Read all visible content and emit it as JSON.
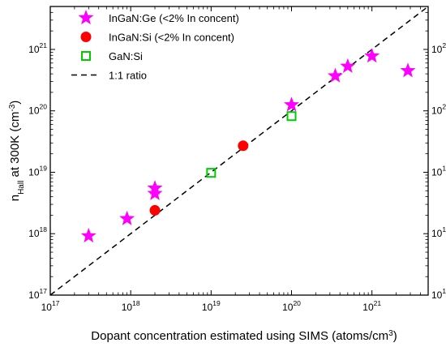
{
  "chart_data": {
    "type": "scatter",
    "xlabel": {
      "text": "Dopant concentration estimated using SIMS (atoms/cm",
      "sup": "3",
      "suffix": ")"
    },
    "ylabel": {
      "main": "n",
      "sub": "Hall",
      "mid": " at 300K (cm",
      "sup": "-3",
      "suffix": ")"
    },
    "x_scale": "log",
    "y_scale": "log",
    "xlim": [
      1e+17,
      5e+21
    ],
    "ylim": [
      1e+17,
      5e+21
    ],
    "x_ticks": [
      {
        "value": 1e+17,
        "base": "10",
        "exp": "17"
      },
      {
        "value": 1e+18,
        "base": "10",
        "exp": "18"
      },
      {
        "value": 1e+19,
        "base": "10",
        "exp": "19"
      },
      {
        "value": 1e+20,
        "base": "10",
        "exp": "20"
      },
      {
        "value": 1e+21,
        "base": "10",
        "exp": "21"
      }
    ],
    "y_ticks": [
      {
        "value": 1e+17,
        "base": "10",
        "exp": "17"
      },
      {
        "value": 1e+18,
        "base": "10",
        "exp": "18"
      },
      {
        "value": 1e+19,
        "base": "10",
        "exp": "19"
      },
      {
        "value": 1e+20,
        "base": "10",
        "exp": "20"
      },
      {
        "value": 1e+21,
        "base": "10",
        "exp": "21"
      }
    ],
    "grid": false,
    "legend_position": "top-left",
    "series": [
      {
        "name": "InGaN:Ge (<2% In concent)",
        "marker": "star",
        "color": "#ff00ff",
        "points": [
          {
            "x": 3e+17,
            "y": 9.2e+17
          },
          {
            "x": 9e+17,
            "y": 1.75e+18
          },
          {
            "x": 2e+18,
            "y": 4.5e+18
          },
          {
            "x": 2e+18,
            "y": 5.5e+18
          },
          {
            "x": 1e+20,
            "y": 1.25e+20
          },
          {
            "x": 3.5e+20,
            "y": 3.7e+20
          },
          {
            "x": 5e+20,
            "y": 5.3e+20
          },
          {
            "x": 1e+21,
            "y": 7.8e+20
          },
          {
            "x": 2.8e+21,
            "y": 4.5e+20
          }
        ]
      },
      {
        "name": "InGaN:Si  (<2% In concent)",
        "marker": "circle",
        "color": "#ff0000",
        "points": [
          {
            "x": 2e+18,
            "y": 2.4e+18
          },
          {
            "x": 2.5e+19,
            "y": 2.7e+19
          }
        ]
      },
      {
        "name": "GaN:Si",
        "marker": "open-square",
        "color": "#00cc00",
        "points": [
          {
            "x": 1e+19,
            "y": 9.8e+18
          },
          {
            "x": 1e+20,
            "y": 8.2e+19
          }
        ]
      },
      {
        "name": "1:1 ratio",
        "marker": "dashed-line",
        "color": "#000000",
        "points": [
          {
            "x": 1e+17,
            "y": 1e+17
          },
          {
            "x": 5e+21,
            "y": 5e+21
          }
        ]
      }
    ]
  }
}
